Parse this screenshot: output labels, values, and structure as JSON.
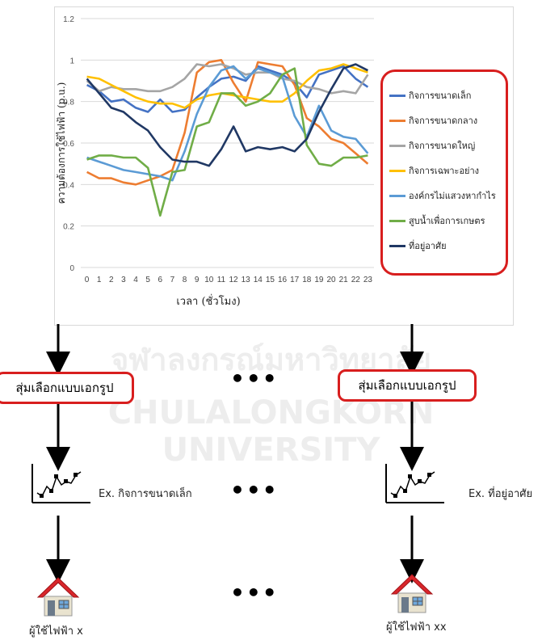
{
  "watermark": {
    "thai": "จุฬาลงกรณ์มหาวิทยาลัย",
    "english": "CHULALONGKORN UNIVERSITY"
  },
  "chart_data": {
    "type": "line",
    "title": "",
    "xlabel": "เวลา (ชั่วโมง)",
    "ylabel": "ความต้องการใช้ไฟฟ้า (p.u.)",
    "ylim": [
      0,
      1.2
    ],
    "yticks": [
      "0",
      "0.2",
      "0.4",
      "0.6",
      "0.8",
      "1",
      "1.2"
    ],
    "x": [
      0,
      1,
      2,
      3,
      4,
      5,
      6,
      7,
      8,
      9,
      10,
      11,
      12,
      13,
      14,
      15,
      16,
      17,
      18,
      19,
      20,
      21,
      22,
      23
    ],
    "grid": true,
    "legend_position": "right",
    "series": [
      {
        "name": "กิจการขนาดเล็ก",
        "color": "#4472c4",
        "values": [
          0.88,
          0.85,
          0.8,
          0.81,
          0.77,
          0.75,
          0.81,
          0.75,
          0.76,
          0.82,
          0.87,
          0.91,
          0.92,
          0.9,
          0.97,
          0.95,
          0.93,
          0.89,
          0.82,
          0.93,
          0.95,
          0.97,
          0.91,
          0.87
        ]
      },
      {
        "name": "กิจการขนาดกลาง",
        "color": "#ed7d31",
        "values": [
          0.46,
          0.43,
          0.43,
          0.41,
          0.4,
          0.42,
          0.44,
          0.47,
          0.65,
          0.94,
          0.99,
          1.0,
          0.89,
          0.8,
          0.99,
          0.98,
          0.97,
          0.88,
          0.72,
          0.68,
          0.62,
          0.6,
          0.55,
          0.5
        ]
      },
      {
        "name": "กิจการขนาดใหญ่",
        "color": "#a5a5a5",
        "values": [
          0.9,
          0.85,
          0.87,
          0.86,
          0.86,
          0.85,
          0.85,
          0.87,
          0.91,
          0.98,
          0.97,
          0.98,
          0.96,
          0.93,
          0.94,
          0.94,
          0.91,
          0.9,
          0.87,
          0.86,
          0.84,
          0.85,
          0.84,
          0.93
        ]
      },
      {
        "name": "กิจการเฉพาะอย่าง",
        "color": "#ffc000",
        "values": [
          0.92,
          0.91,
          0.88,
          0.85,
          0.82,
          0.8,
          0.79,
          0.79,
          0.77,
          0.81,
          0.83,
          0.84,
          0.83,
          0.82,
          0.81,
          0.8,
          0.8,
          0.84,
          0.9,
          0.95,
          0.96,
          0.98,
          0.96,
          0.94
        ]
      },
      {
        "name": "องค์กรไม่แสวงหากำไร",
        "color": "#5b9bd5",
        "values": [
          0.53,
          0.51,
          0.49,
          0.47,
          0.46,
          0.45,
          0.44,
          0.42,
          0.56,
          0.74,
          0.87,
          0.95,
          0.97,
          0.91,
          0.96,
          0.94,
          0.92,
          0.73,
          0.63,
          0.78,
          0.66,
          0.63,
          0.62,
          0.55
        ]
      },
      {
        "name": "สูบน้ำเพื่อการเกษตร",
        "color": "#70ad47",
        "values": [
          0.52,
          0.54,
          0.54,
          0.53,
          0.53,
          0.48,
          0.25,
          0.46,
          0.47,
          0.68,
          0.7,
          0.84,
          0.84,
          0.78,
          0.8,
          0.84,
          0.93,
          0.96,
          0.59,
          0.5,
          0.49,
          0.53,
          0.53,
          0.54
        ]
      },
      {
        "name": "ที่อยู่อาศัย",
        "color": "#203864",
        "values": [
          0.91,
          0.84,
          0.77,
          0.75,
          0.7,
          0.66,
          0.58,
          0.52,
          0.51,
          0.51,
          0.49,
          0.57,
          0.68,
          0.56,
          0.58,
          0.57,
          0.58,
          0.56,
          0.62,
          0.75,
          0.86,
          0.96,
          0.98,
          0.95
        ]
      }
    ]
  },
  "flow": {
    "sample_left": "สุ่มเลือกแบบเอกรูป",
    "sample_right": "สุ่มเลือกแบบเอกรูป",
    "ellipsis": "•••",
    "example_left": "Ex. กิจการขนาดเล็ก",
    "example_right": "Ex. ที่อยู่อาศัย",
    "user_left": "ผู้ใช้ไฟฟ้า x",
    "user_right": "ผู้ใช้ไฟฟ้า xx"
  },
  "icons": {
    "profile": "line-chart-icon",
    "house": "house-icon",
    "arrow": "down-arrow"
  },
  "colors": {
    "legend_border": "#d81e1e",
    "roof": "#d9262b"
  }
}
